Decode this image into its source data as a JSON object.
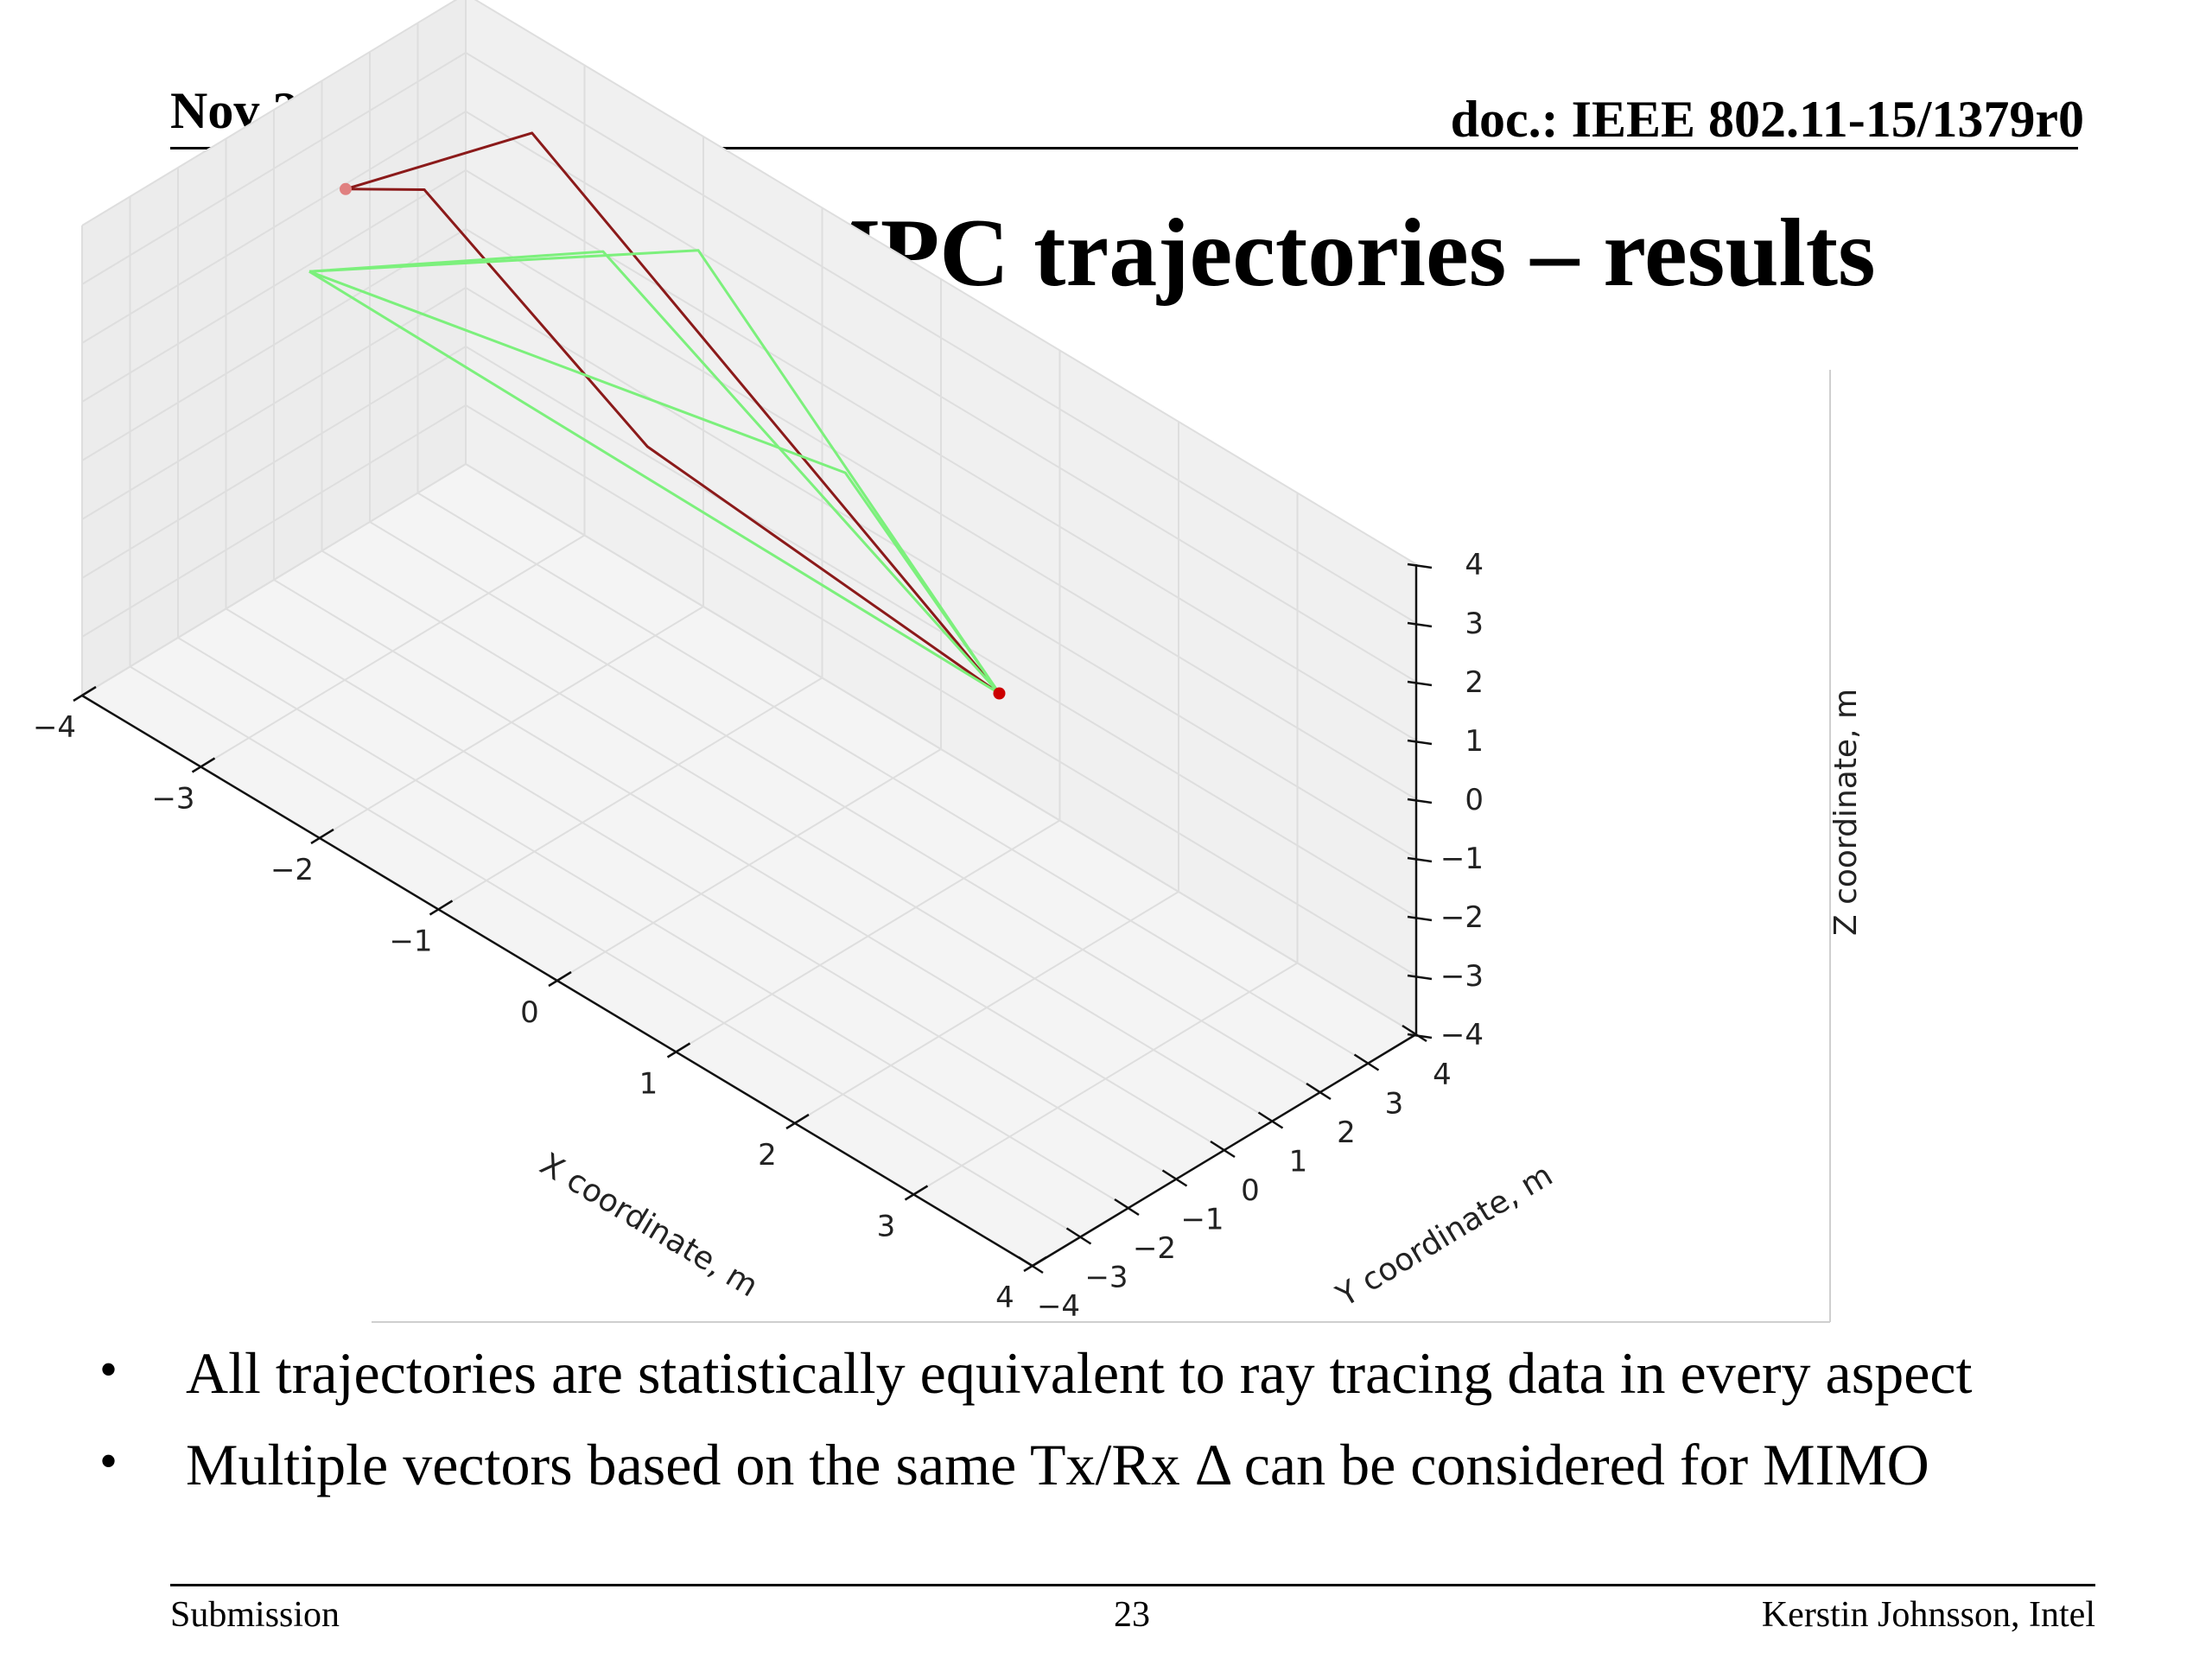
{
  "header": {
    "date": "Nov 2015",
    "doc_id": "doc.: IEEE 802.11-15/1379r0"
  },
  "slide": {
    "title": "Producing MPC trajectories – results"
  },
  "bullets": [
    "All trajectories are statistically equivalent to ray tracing data in every aspect",
    "Multiple vectors based on the same Tx/Rx Δ can be considered for MIMO"
  ],
  "footer": {
    "left": "Submission",
    "page": "23",
    "right": "Kerstin Johnsson, Intel"
  },
  "chart_data": {
    "type": "line",
    "projection": "3d",
    "xlabel": "X coordinate, m",
    "ylabel": "Y coordinate, m",
    "zlabel": "Z coordinate, m",
    "xlim": [
      -4,
      4
    ],
    "ylim": [
      -4,
      4
    ],
    "zlim": [
      -4,
      4
    ],
    "xticks": [
      "−4",
      "−3",
      "−2",
      "−1",
      "0",
      "1",
      "2",
      "3",
      "4"
    ],
    "yticks": [
      "−4",
      "−3",
      "−2",
      "−1",
      "0",
      "1",
      "2",
      "3",
      "4"
    ],
    "zticks": [
      "−4",
      "−3",
      "−2",
      "−1",
      "0",
      "1",
      "2",
      "3",
      "4"
    ],
    "grid": true,
    "colors": {
      "dark_red": "#8b1a1a",
      "light_green": "#7cf07c"
    },
    "series": [
      {
        "color": "#8b1a1a",
        "segments": [
          [
            [
              -3.8,
              1.0,
              2.4
            ],
            [
              -3.3,
              1.4,
              2.8
            ],
            [
              -3.8,
              1.0,
              2.4
            ]
          ],
          [
            [
              -3.8,
              1.0,
              2.4
            ],
            [
              -3.2,
              3.4,
              2.9
            ],
            [
              1.5,
              1.5,
              0.0
            ]
          ],
          [
            [
              1.5,
              1.5,
              0.0
            ],
            [
              -1.3,
              1.1,
              1.0
            ],
            [
              -3.3,
              1.4,
              2.8
            ]
          ]
        ]
      },
      {
        "color": "#7cf07c",
        "segments": [
          [
            [
              -3.5,
              -0.5,
              2.1
            ],
            [
              1.5,
              1.5,
              0.0
            ]
          ],
          [
            [
              -3.5,
              -0.5,
              2.1
            ],
            [
              -1.8,
              3.4,
              2.6
            ],
            [
              1.5,
              1.5,
              0.0
            ]
          ],
          [
            [
              -3.5,
              -0.5,
              2.1
            ],
            [
              -0.2,
              2.5,
              1.2
            ],
            [
              1.5,
              1.5,
              0.0
            ]
          ],
          [
            [
              -3.5,
              -0.5,
              2.1
            ],
            [
              -2.4,
              2.9,
              2.1
            ],
            [
              1.5,
              1.5,
              0.0
            ]
          ]
        ]
      }
    ],
    "markers": [
      {
        "point": [
          1.5,
          1.5,
          0.0
        ],
        "color": "#cc0000"
      },
      {
        "point": [
          -3.8,
          1.0,
          2.4
        ],
        "color": "#e08080"
      }
    ]
  }
}
